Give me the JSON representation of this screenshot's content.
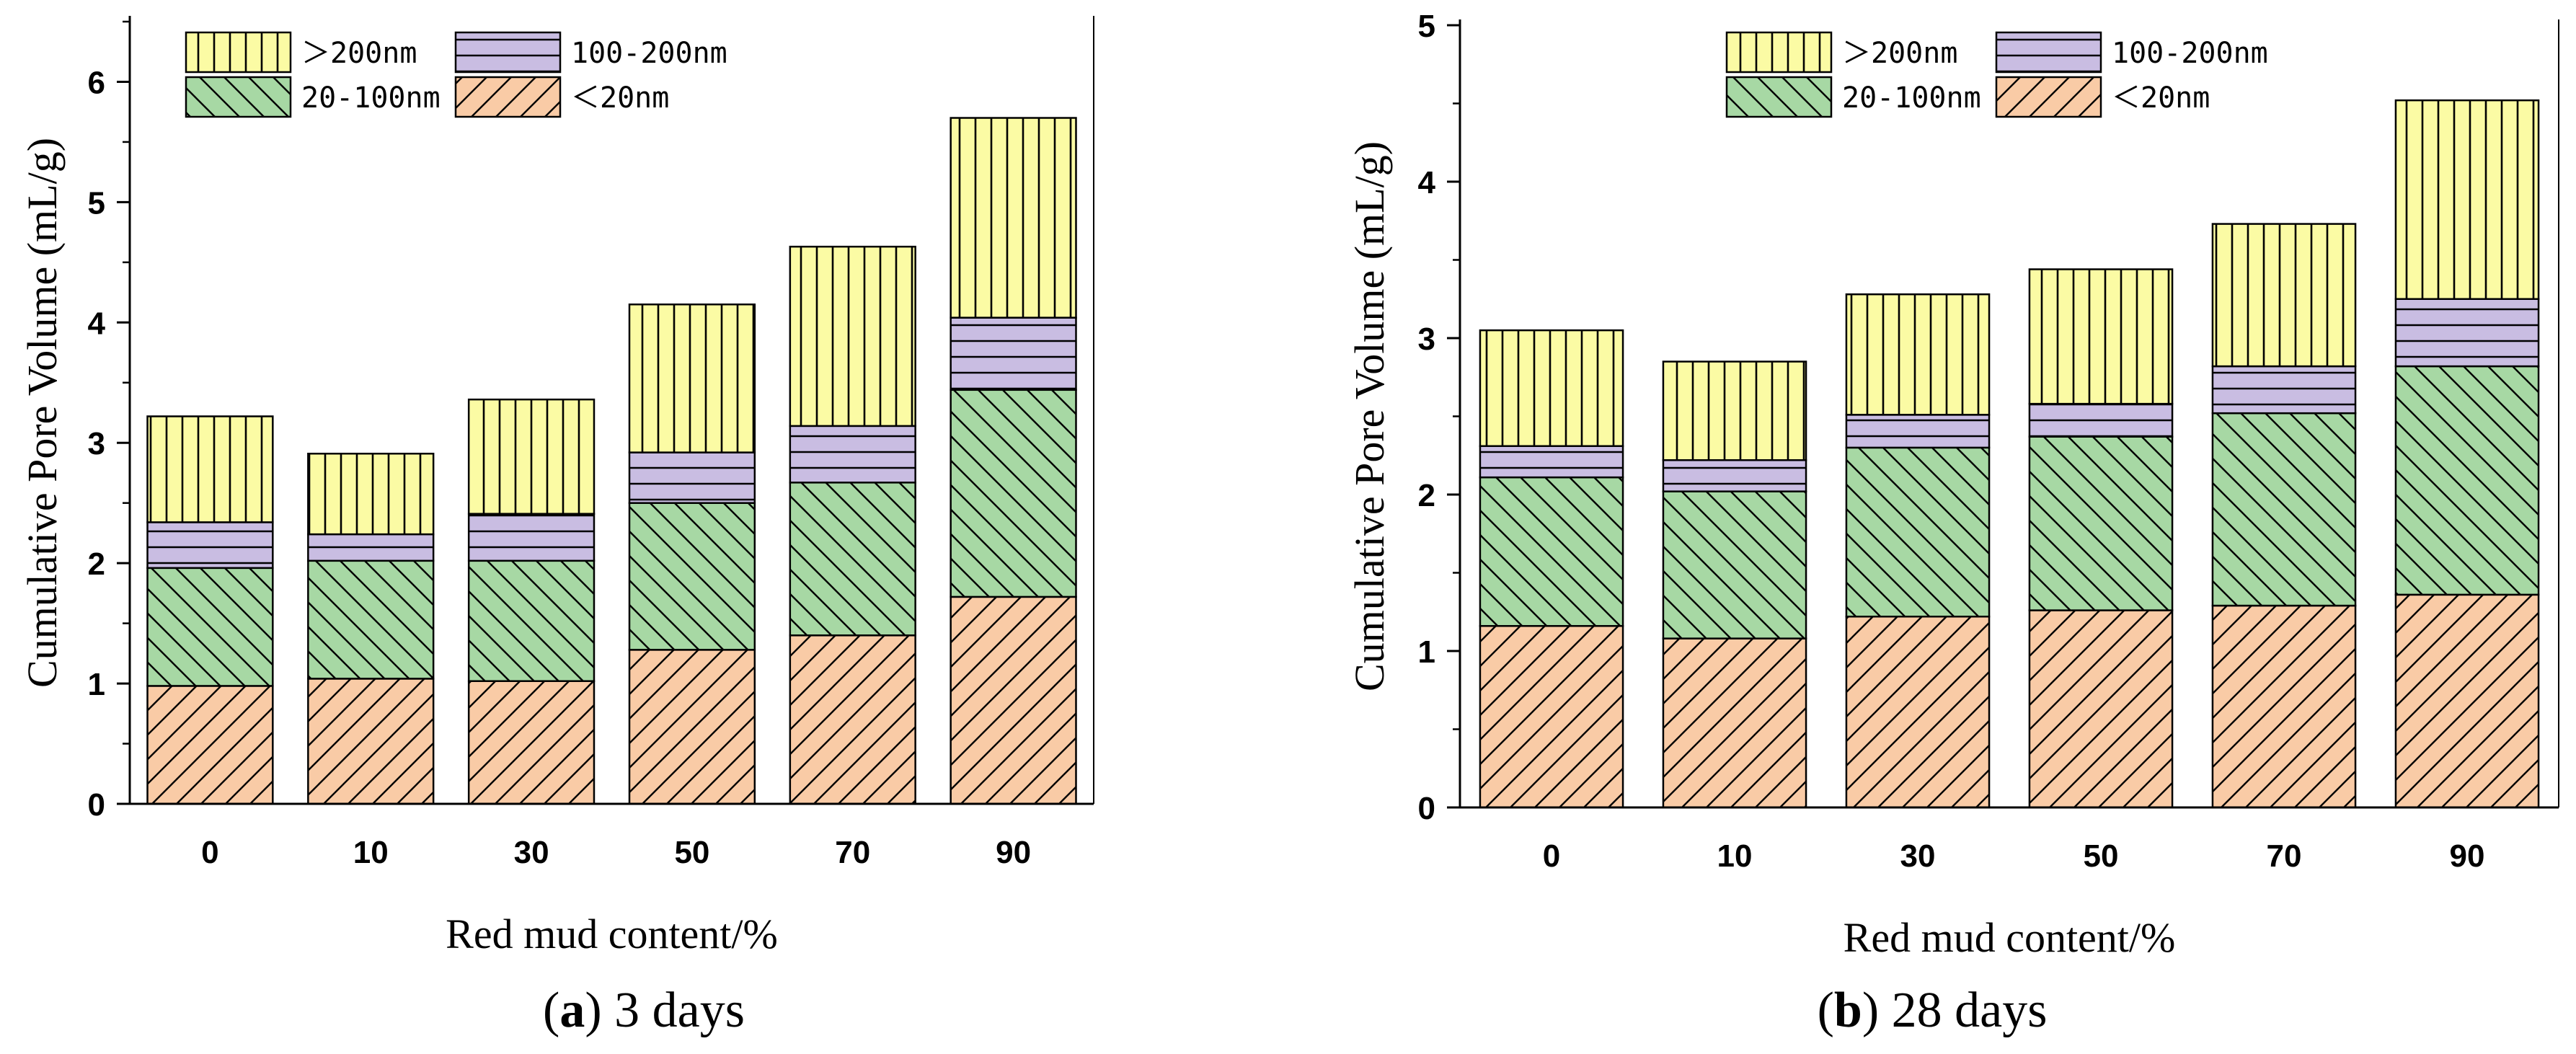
{
  "chart_data": [
    {
      "type": "bar",
      "stacked": true,
      "caption_letter": "a",
      "caption_text": " 3 days",
      "xlabel": "Red mud content/%",
      "ylabel": "Cumulative Pore Volume (mL/g)",
      "categories": [
        "0",
        "10",
        "30",
        "50",
        "70",
        "90"
      ],
      "ylim": [
        0,
        6.5
      ],
      "yticks": [
        "0",
        "1",
        "2",
        "3",
        "4",
        "5",
        "6"
      ],
      "series": [
        {
          "name": "<20nm",
          "values": [
            0.98,
            1.04,
            1.02,
            1.28,
            1.4,
            1.72
          ]
        },
        {
          "name": "20-100nm",
          "values": [
            0.98,
            0.98,
            1.0,
            1.22,
            1.27,
            1.72
          ]
        },
        {
          "name": "100-200nm",
          "values": [
            0.38,
            0.22,
            0.39,
            0.42,
            0.47,
            0.6
          ]
        },
        {
          "name": ">200nm",
          "values": [
            0.88,
            0.67,
            0.95,
            1.23,
            1.49,
            1.66
          ]
        }
      ],
      "legend_order": [
        ">200nm",
        "100-200nm",
        "20-100nm",
        "<20nm"
      ]
    },
    {
      "type": "bar",
      "stacked": true,
      "caption_letter": "b",
      "caption_text": " 28 days",
      "xlabel": "Red mud content/%",
      "ylabel": "Cumulative Pore Volume (mL/g)",
      "categories": [
        "0",
        "10",
        "30",
        "50",
        "70",
        "90"
      ],
      "ylim": [
        0,
        5
      ],
      "yticks": [
        "0",
        "1",
        "2",
        "3",
        "4",
        "5"
      ],
      "series": [
        {
          "name": "<20nm",
          "values": [
            1.16,
            1.08,
            1.22,
            1.26,
            1.29,
            1.36
          ]
        },
        {
          "name": "20-100nm",
          "values": [
            0.95,
            0.94,
            1.08,
            1.11,
            1.23,
            1.46
          ]
        },
        {
          "name": "100-200nm",
          "values": [
            0.2,
            0.2,
            0.21,
            0.21,
            0.3,
            0.43
          ]
        },
        {
          "name": ">200nm",
          "values": [
            0.74,
            0.63,
            0.77,
            0.86,
            0.91,
            1.27
          ]
        }
      ],
      "legend_order": [
        ">200nm",
        "100-200nm",
        "20-100nm",
        "<20nm"
      ]
    }
  ],
  "legend_labels": {
    "gt200": "＞200nm",
    "r100_200": "100-200nm",
    "r20_100": "20-100nm",
    "lt20": "＜20nm"
  },
  "colors": {
    "lt20": "#F9CBA6",
    "r20_100": "#A7D8A4",
    "r100_200": "#C9BDE2",
    "gt200": "#FBFBA4",
    "stroke": "#000000"
  }
}
